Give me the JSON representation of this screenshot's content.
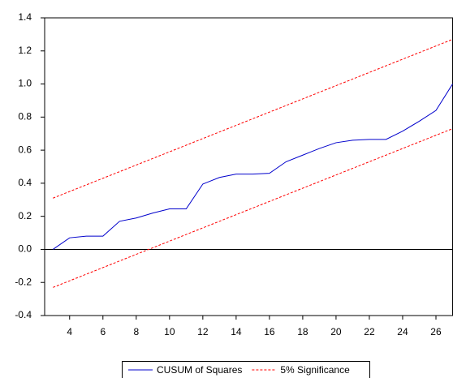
{
  "chart_data": {
    "type": "line",
    "x": [
      3,
      4,
      5,
      6,
      7,
      8,
      9,
      10,
      11,
      12,
      13,
      14,
      15,
      16,
      17,
      18,
      19,
      20,
      21,
      22,
      23,
      24,
      25,
      26,
      27
    ],
    "series": [
      {
        "name": "CUSUM of Squares",
        "color": "#0000cc",
        "values": [
          0.0,
          0.07,
          0.08,
          0.08,
          0.17,
          0.19,
          0.22,
          0.245,
          0.245,
          0.395,
          0.435,
          0.455,
          0.455,
          0.46,
          0.53,
          0.57,
          0.61,
          0.645,
          0.66,
          0.665,
          0.665,
          0.715,
          0.775,
          0.84,
          1.0
        ]
      },
      {
        "name": "5% Significance",
        "color": "#ff0000",
        "dashed": true,
        "values": [
          0.31,
          0.35,
          0.39,
          0.43,
          0.47,
          0.51,
          0.55,
          0.59,
          0.63,
          0.67,
          0.71,
          0.75,
          0.79,
          0.83,
          0.87,
          0.91,
          0.95,
          0.99,
          1.03,
          1.07,
          1.11,
          1.15,
          1.19,
          1.23,
          1.27
        ],
        "lower": [
          -0.23,
          -0.19,
          -0.15,
          -0.11,
          -0.07,
          -0.03,
          0.01,
          0.05,
          0.09,
          0.13,
          0.17,
          0.21,
          0.25,
          0.29,
          0.33,
          0.37,
          0.41,
          0.45,
          0.49,
          0.53,
          0.57,
          0.61,
          0.65,
          0.69,
          0.73
        ]
      }
    ],
    "xlim": [
      2.5,
      27
    ],
    "xticks": [
      4,
      6,
      8,
      10,
      12,
      14,
      16,
      18,
      20,
      22,
      24,
      26
    ],
    "ylim": [
      -0.4,
      1.4
    ],
    "yticks": [
      {
        "value": -0.4,
        "label": "-0.4"
      },
      {
        "value": -0.2,
        "label": "-0.2"
      },
      {
        "value": 0,
        "label": "0.0"
      },
      {
        "value": 0.2,
        "label": "0.2"
      },
      {
        "value": 0.4,
        "label": "0.4"
      },
      {
        "value": 0.6,
        "label": "0.6"
      },
      {
        "value": 0.8,
        "label": "0.8"
      },
      {
        "value": 1,
        "label": "1.0"
      },
      {
        "value": 1.2,
        "label": "1.2"
      },
      {
        "value": 1.4,
        "label": "1.4"
      }
    ],
    "zero_line": true,
    "legend": "bottom"
  }
}
